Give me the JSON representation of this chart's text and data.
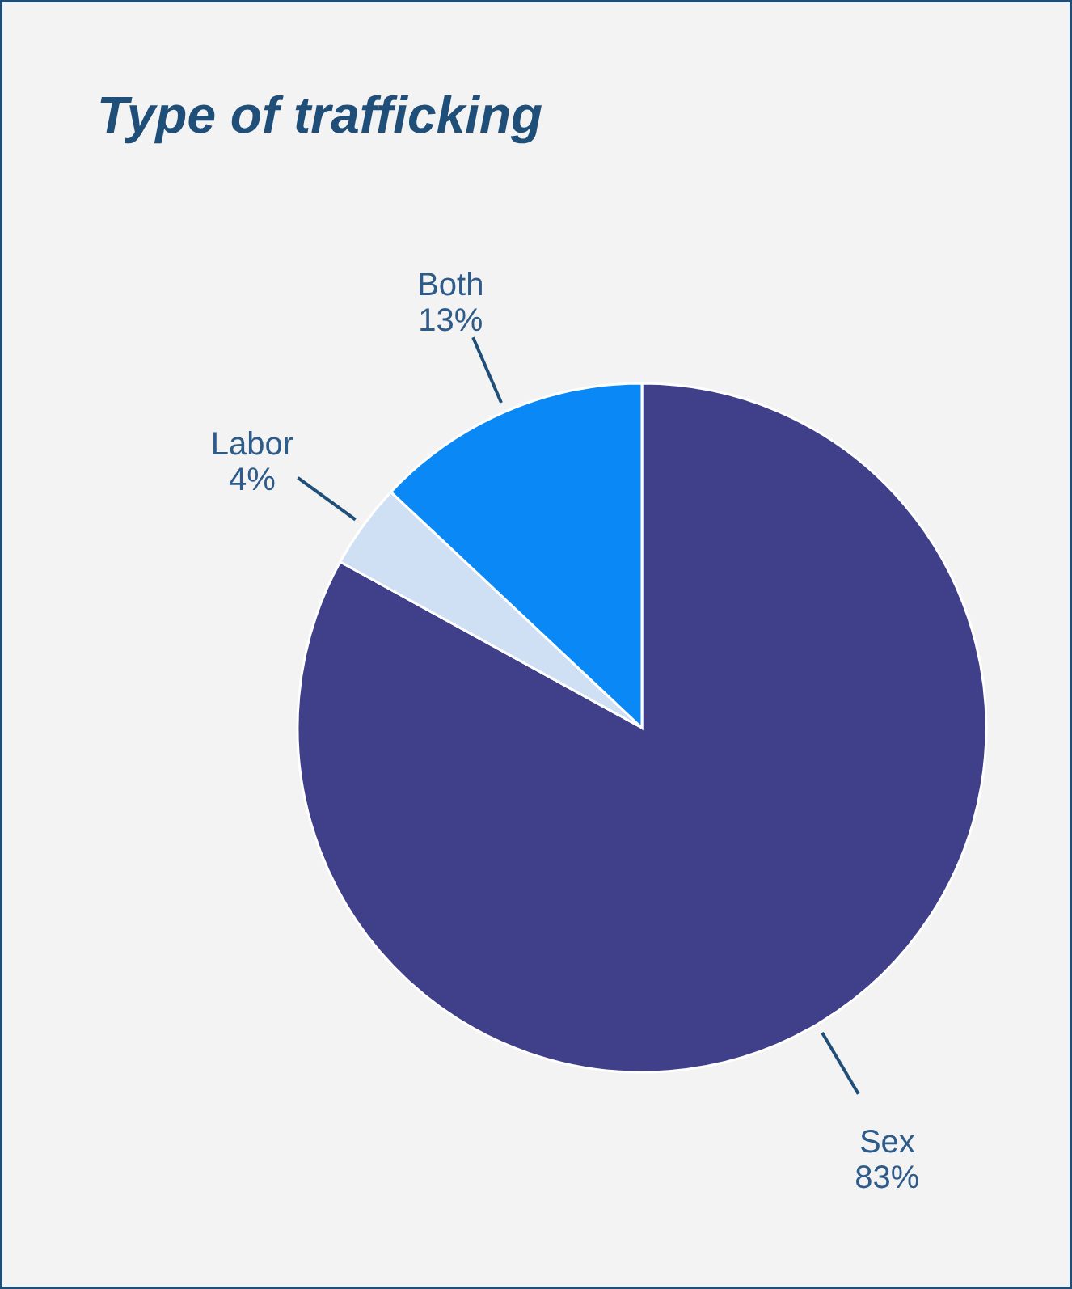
{
  "chart_data": {
    "type": "pie",
    "title": "Type of trafficking",
    "categories": [
      "Sex",
      "Labor",
      "Both"
    ],
    "values": [
      83,
      4,
      13
    ],
    "value_labels": [
      "83%",
      "4%",
      "13%"
    ],
    "colors": [
      "#3f3f8a",
      "#cfe0f5",
      "#0a88f5"
    ]
  }
}
